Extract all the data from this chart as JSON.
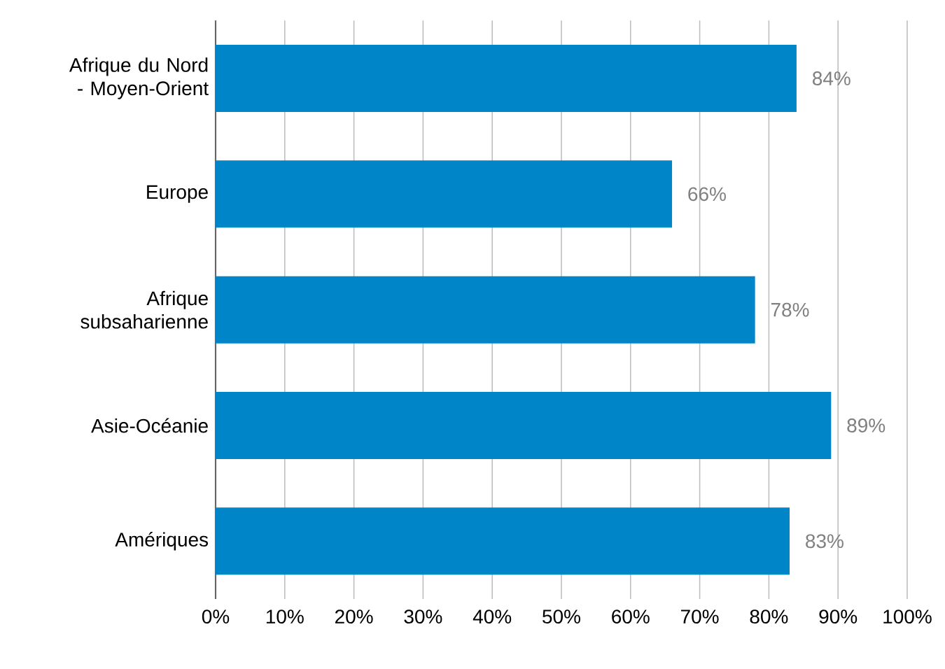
{
  "chart_data": {
    "type": "bar",
    "orientation": "horizontal",
    "categories": [
      "Afrique du Nord - Moyen-Orient",
      "Europe",
      "Afrique subsaharienne",
      "Asie-Océanie",
      "Amériques"
    ],
    "values": [
      84,
      66,
      78,
      89,
      83
    ],
    "value_labels": [
      "84%",
      "66%",
      "78%",
      "89%",
      "83%"
    ],
    "color": "#0085c8",
    "xlim": [
      0,
      100
    ],
    "xticks": [
      {
        "value": 0,
        "label": "0%"
      },
      {
        "value": 10,
        "label": "10%"
      },
      {
        "value": 20,
        "label": "20%"
      },
      {
        "value": 30,
        "label": "30%"
      },
      {
        "value": 40,
        "label": "40%"
      },
      {
        "value": 50,
        "label": "50%"
      },
      {
        "value": 60,
        "label": "60%"
      },
      {
        "value": 70,
        "label": "70%"
      },
      {
        "value": 80,
        "label": "80%"
      },
      {
        "value": 90,
        "label": "90%"
      },
      {
        "value": 100,
        "label": "100%"
      }
    ],
    "grid": "x"
  }
}
